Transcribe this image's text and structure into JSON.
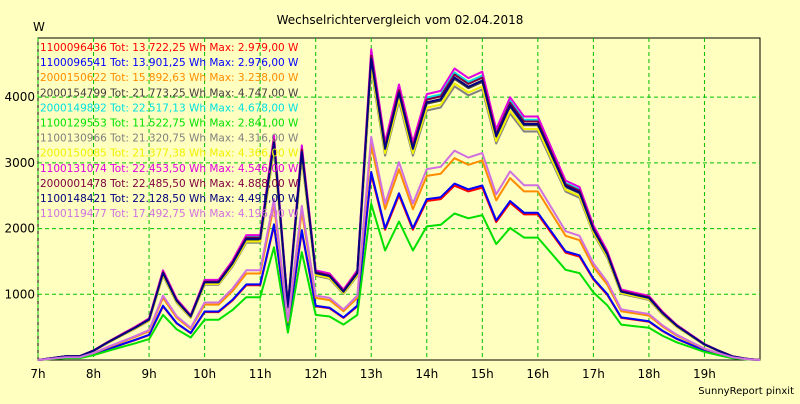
{
  "chart_data": {
    "type": "line",
    "title": "Wechselrichtervergleich vom 02.04.2018",
    "ylabel": "W",
    "xlabel": "",
    "footer": "SunnyReport pinxit",
    "xlim": [
      7,
      20
    ],
    "ylim": [
      0,
      4900
    ],
    "yticks": [
      1000,
      2000,
      3000,
      4000
    ],
    "xticks": [
      "7h",
      "8h",
      "9h",
      "10h",
      "11h",
      "12h",
      "13h",
      "14h",
      "15h",
      "16h",
      "17h",
      "18h",
      "19h"
    ],
    "grid": true,
    "legend_position": "top-left",
    "x": [
      7.0,
      7.25,
      7.5,
      7.75,
      8.0,
      8.25,
      8.5,
      8.75,
      9.0,
      9.25,
      9.5,
      9.75,
      10.0,
      10.25,
      10.5,
      10.75,
      11.0,
      11.25,
      11.5,
      11.75,
      12.0,
      12.25,
      12.5,
      12.75,
      13.0,
      13.25,
      13.5,
      13.75,
      14.0,
      14.25,
      14.5,
      14.75,
      15.0,
      15.25,
      15.5,
      15.75,
      16.0,
      16.25,
      16.5,
      16.75,
      17.0,
      17.25,
      17.5,
      17.75,
      18.0,
      18.25,
      18.5,
      18.75,
      19.0,
      19.25,
      19.5,
      19.75,
      20.0
    ],
    "series": [
      {
        "name": "1100096436",
        "total": "Tot: 13.722,25 Wh",
        "max": "Max: 2.979,00 W",
        "color": "#ff0000",
        "scale": 0.583
      },
      {
        "name": "1100096541",
        "total": "Tot: 13.901,25 Wh",
        "max": "Max: 2.976,00 W",
        "color": "#0000ff",
        "scale": 0.59
      },
      {
        "name": "2000150622",
        "total": "Tot: 15.892,63 Wh",
        "max": "Max: 3.238,00 W",
        "color": "#ff8c00",
        "scale": 0.675
      },
      {
        "name": "2000154799",
        "total": "Tot: 21.773,25 Wh",
        "max": "Max: 4.747,00 W",
        "color": "#404040",
        "scale": 0.94
      },
      {
        "name": "2000149892",
        "total": "Tot: 22.517,13 Wh",
        "max": "Max: 4.678,00 W",
        "color": "#00e0e0",
        "scale": 0.962
      },
      {
        "name": "1100129553",
        "total": "Tot: 11.522,75 Wh",
        "max": "Max: 2.841,00 W",
        "color": "#00e000",
        "scale": 0.49
      },
      {
        "name": "1100130966",
        "total": "Tot: 21.320,75 Wh",
        "max": "Max: 4.316,00 W",
        "color": "#808080",
        "scale": 0.915
      },
      {
        "name": "2000150085",
        "total": "Tot: 21.377,38 Wh",
        "max": "Max: 4.366,00 W",
        "color": "#f0f000",
        "scale": 0.925
      },
      {
        "name": "1100131074",
        "total": "Tot: 22.453,50 Wh",
        "max": "Max: 4.546,00 W",
        "color": "#e000e0",
        "scale": 0.975
      },
      {
        "name": "2000001478",
        "total": "Tot: 22.485,50 Wh",
        "max": "Max: 4.888,00 W",
        "color": "#800040",
        "scale": 0.955
      },
      {
        "name": "1100148421",
        "total": "Tot: 22.128,50 Wh",
        "max": "Max: 4.491,00 W",
        "color": "#000080",
        "scale": 0.945
      },
      {
        "name": "1100119477",
        "total": "Tot: 17.492,75 Wh",
        "max": "Max: 4.196,00 W",
        "color": "#d070e0",
        "scale": 0.7
      }
    ],
    "base_values": [
      0,
      30,
      60,
      60,
      150,
      280,
      400,
      520,
      650,
      1400,
      950,
      700,
      1250,
      1250,
      1550,
      1950,
      1950,
      3500,
      850,
      3350,
      1400,
      1350,
      1100,
      1400,
      4850,
      3400,
      4300,
      3400,
      4150,
      4200,
      4550,
      4400,
      4500,
      3600,
      4100,
      3800,
      3800,
      3300,
      2800,
      2700,
      2100,
      1700,
      1100,
      1050,
      1000,
      750,
      550,
      400,
      250,
      150,
      60,
      20,
      0
    ]
  }
}
